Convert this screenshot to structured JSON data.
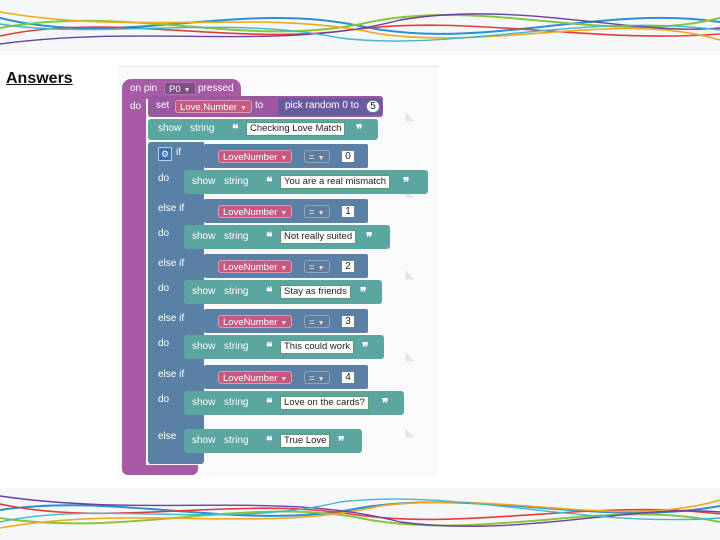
{
  "slide": {
    "title": "Answers"
  },
  "colors": {
    "event": "#a75aa6",
    "logic": "#5b80a5",
    "text": "#5ba6a0",
    "variable": "#c45a7f"
  },
  "event": {
    "label_on_pin": "on pin",
    "pin": "P0",
    "label_pressed": "pressed",
    "label_do": "do"
  },
  "set": {
    "label_set": "set",
    "variable": "Love.Number",
    "label_to": "to",
    "label_pick": "pick random 0 to",
    "max": "5"
  },
  "show_first": {
    "label_show": "show",
    "label_string": "string",
    "value": "Checking Love Match"
  },
  "open_quote": "❝",
  "close_quote": "❞",
  "if_block": {
    "label_if": "if",
    "label_else_if": "else if",
    "label_do": "do",
    "label_else": "else",
    "operator": "=",
    "gear_icon": "gear-icon",
    "branches": [
      {
        "variable": "LoveNumber",
        "value": "0",
        "show": "show",
        "string": "string",
        "text": "You are a real mismatch"
      },
      {
        "variable": "LoveNumber",
        "value": "1",
        "show": "show",
        "string": "string",
        "text": "Not really suited"
      },
      {
        "variable": "LoveNumber",
        "value": "2",
        "show": "show",
        "string": "string",
        "text": "Stay as friends"
      },
      {
        "variable": "LoveNumber",
        "value": "3",
        "show": "show",
        "string": "string",
        "text": "This could work"
      },
      {
        "variable": "LoveNumber",
        "value": "4",
        "show": "show",
        "string": "string",
        "text": "Love on the cards?"
      }
    ],
    "else_branch": {
      "show": "show",
      "string": "string",
      "text": "True Love"
    }
  }
}
